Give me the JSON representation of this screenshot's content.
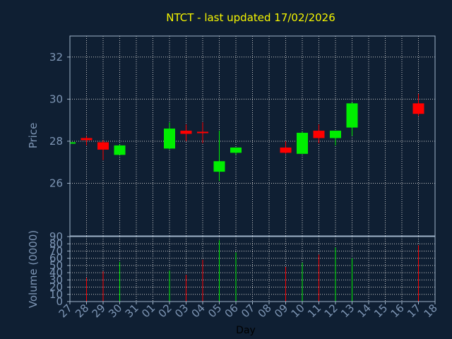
{
  "chart_data": {
    "type": "candlestick",
    "title": "NTCT - last updated 17/02/2026",
    "xlabel": "Day",
    "ylabel_price": "Price",
    "ylabel_volume": "Volume (0000)",
    "x_labels": [
      "27",
      "28",
      "29",
      "30",
      "31",
      "01",
      "02",
      "03",
      "04",
      "05",
      "06",
      "07",
      "08",
      "09",
      "10",
      "11",
      "12",
      "13",
      "14",
      "15",
      "16",
      "17",
      "18"
    ],
    "price_axis": {
      "ylim": [
        23.5,
        33
      ],
      "ticks": [
        26,
        28,
        30,
        32
      ]
    },
    "volume_axis": {
      "ylim": [
        0,
        90
      ],
      "ticks": [
        0,
        10,
        20,
        30,
        40,
        50,
        60,
        70,
        80,
        90
      ]
    },
    "grid": true,
    "colors": {
      "up": "#00ee00",
      "down": "#ff0000",
      "background": "#0f1f33",
      "title": "#f5f500",
      "axis_text": "#7e96b5",
      "frame": "#9fb3c8",
      "grid": "#c8c8c8"
    },
    "candles": [
      {
        "day": "27",
        "open": 27.9,
        "high": 28.0,
        "low": 27.8,
        "close": 27.95,
        "volume": 0
      },
      {
        "day": "28",
        "open": 28.15,
        "high": 28.25,
        "low": 27.8,
        "close": 28.05,
        "volume": 33
      },
      {
        "day": "29",
        "open": 27.95,
        "high": 28.05,
        "low": 27.1,
        "close": 27.6,
        "volume": 42
      },
      {
        "day": "30",
        "open": 27.35,
        "high": 27.85,
        "low": 27.35,
        "close": 27.8,
        "volume": 55
      },
      {
        "day": "02",
        "open": 27.65,
        "high": 28.9,
        "low": 27.6,
        "close": 28.6,
        "volume": 43
      },
      {
        "day": "03",
        "open": 28.5,
        "high": 28.8,
        "low": 28.0,
        "close": 28.35,
        "volume": 37
      },
      {
        "day": "04",
        "open": 28.45,
        "high": 28.9,
        "low": 27.9,
        "close": 28.4,
        "volume": 58
      },
      {
        "day": "05",
        "open": 26.55,
        "high": 28.5,
        "low": 26.1,
        "close": 27.05,
        "volume": 85
      },
      {
        "day": "06",
        "open": 27.45,
        "high": 27.7,
        "low": 27.35,
        "close": 27.7,
        "volume": 68
      },
      {
        "day": "09",
        "open": 27.7,
        "high": 28.0,
        "low": 27.4,
        "close": 27.45,
        "volume": 48
      },
      {
        "day": "10",
        "open": 27.4,
        "high": 28.45,
        "low": 27.4,
        "close": 28.4,
        "volume": 54
      },
      {
        "day": "11",
        "open": 28.5,
        "high": 28.8,
        "low": 27.9,
        "close": 28.15,
        "volume": 65
      },
      {
        "day": "12",
        "open": 28.15,
        "high": 28.5,
        "low": 27.8,
        "close": 28.5,
        "volume": 75
      },
      {
        "day": "13",
        "open": 28.65,
        "high": 29.85,
        "low": 28.25,
        "close": 29.8,
        "volume": 60
      },
      {
        "day": "17",
        "open": 29.8,
        "high": 30.25,
        "low": 29.2,
        "close": 29.3,
        "volume": 78
      }
    ]
  }
}
